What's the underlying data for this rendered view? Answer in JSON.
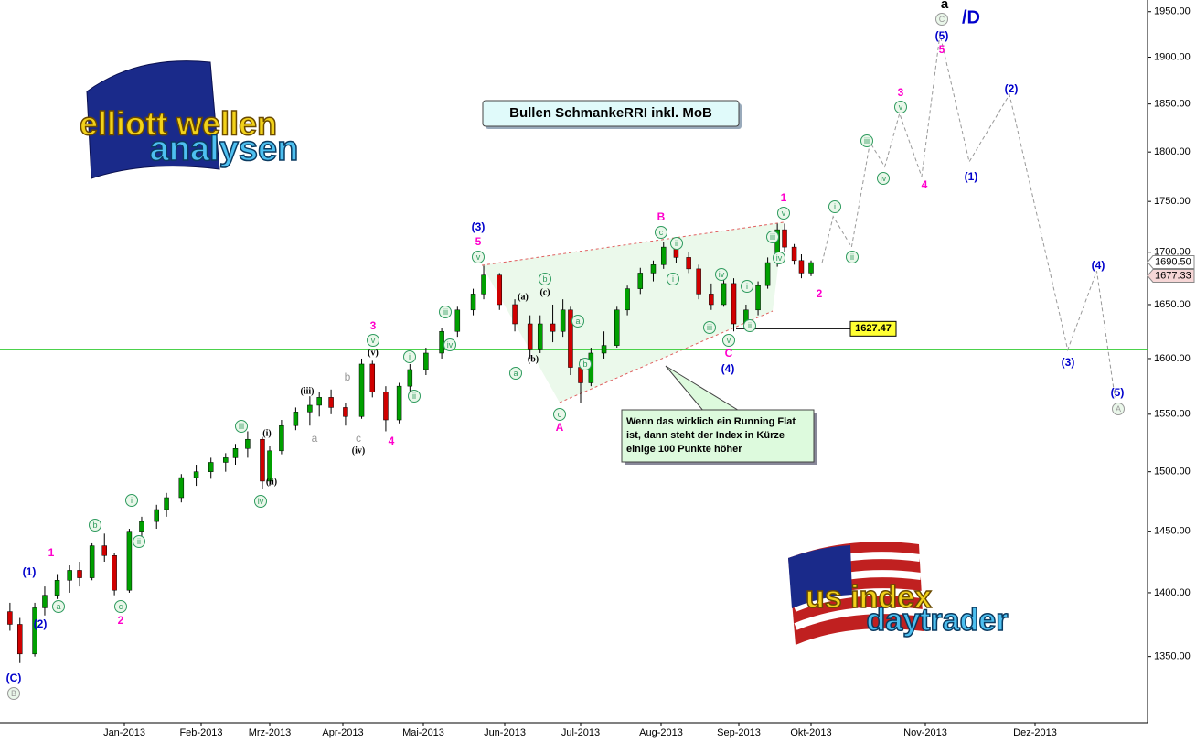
{
  "chart_data": {
    "type": "candlestick",
    "title": "Bullen SchmankeRRI inkl. MoB",
    "log": true,
    "ylim": [
      1300,
      1963
    ],
    "yticks": [
      {
        "value": 1350,
        "label": "1350.00"
      },
      {
        "value": 1400,
        "label": "1400.00"
      },
      {
        "value": 1450,
        "label": "1450.00"
      },
      {
        "value": 1500,
        "label": "1500.00"
      },
      {
        "value": 1550,
        "label": "1550.00"
      },
      {
        "value": 1600,
        "label": "1600.00"
      },
      {
        "value": 1650,
        "label": "1650.00"
      },
      {
        "value": 1700,
        "label": "1700.00"
      },
      {
        "value": 1750,
        "label": "1750.00"
      },
      {
        "value": 1800,
        "label": "1800.00"
      },
      {
        "value": 1850,
        "label": "1850.00"
      },
      {
        "value": 1900,
        "label": "1900.00"
      },
      {
        "value": 1950,
        "label": "1950.00"
      }
    ],
    "xlim": [
      "2012-11-12",
      "2014-01-01"
    ],
    "xticks": [
      {
        "value": "2013-01-01",
        "label": "Jan-2013"
      },
      {
        "value": "2013-02-01",
        "label": "Feb-2013"
      },
      {
        "value": "2013-03-01",
        "label": "Mrz-2013"
      },
      {
        "value": "2013-04-01",
        "label": "Apr-2013"
      },
      {
        "value": "2013-05-01",
        "label": "Mai-2013"
      },
      {
        "value": "2013-06-01",
        "label": "Jun-2013"
      },
      {
        "value": "2013-07-01",
        "label": "Jul-2013"
      },
      {
        "value": "2013-08-01",
        "label": "Aug-2013"
      },
      {
        "value": "2013-09-01",
        "label": "Sep-2013"
      },
      {
        "value": "2013-10-01",
        "label": "Okt-2013"
      },
      {
        "value": "2013-11-01",
        "label": "Nov-2013"
      },
      {
        "value": "2013-12-01",
        "label": "Dez-2013"
      }
    ],
    "up_color": "#00a000",
    "down_color": "#d00000",
    "x": [
      "2012-11-16",
      "2012-11-20",
      "2012-11-26",
      "2012-11-30",
      "2012-12-05",
      "2012-12-10",
      "2012-12-14",
      "2012-12-19",
      "2012-12-24",
      "2012-12-28",
      "2013-01-03",
      "2013-01-08",
      "2013-01-14",
      "2013-01-18",
      "2013-01-24",
      "2013-01-30",
      "2013-02-05",
      "2013-02-11",
      "2013-02-15",
      "2013-02-20",
      "2013-02-26",
      "2013-03-01",
      "2013-03-06",
      "2013-03-12",
      "2013-03-18",
      "2013-03-22",
      "2013-03-27",
      "2013-04-02",
      "2013-04-08",
      "2013-04-12",
      "2013-04-17",
      "2013-04-22",
      "2013-04-26",
      "2013-05-02",
      "2013-05-08",
      "2013-05-14",
      "2013-05-20",
      "2013-05-24",
      "2013-05-30",
      "2013-06-05",
      "2013-06-11",
      "2013-06-15",
      "2013-06-20",
      "2013-06-24",
      "2013-06-27",
      "2013-07-01",
      "2013-07-05",
      "2013-07-10",
      "2013-07-15",
      "2013-07-19",
      "2013-07-24",
      "2013-07-29",
      "2013-08-02",
      "2013-08-07",
      "2013-08-12",
      "2013-08-16",
      "2013-08-21",
      "2013-08-26",
      "2013-08-30",
      "2013-09-04",
      "2013-09-09",
      "2013-09-13",
      "2013-09-17",
      "2013-09-20",
      "2013-09-24",
      "2013-09-27",
      "2013-10-01"
    ],
    "open": [
      1385,
      1375,
      1352,
      1388,
      1398,
      1410,
      1418,
      1412,
      1438,
      1430,
      1402,
      1450,
      1458,
      1468,
      1478,
      1495,
      1500,
      1508,
      1512,
      1520,
      1528,
      1492,
      1518,
      1540,
      1552,
      1558,
      1565,
      1556,
      1548,
      1595,
      1570,
      1545,
      1575,
      1590,
      1605,
      1625,
      1645,
      1660,
      1678,
      1650,
      1632,
      1608,
      1632,
      1625,
      1645,
      1592,
      1578,
      1605,
      1612,
      1645,
      1665,
      1680,
      1688,
      1705,
      1695,
      1684,
      1660,
      1650,
      1670,
      1632,
      1645,
      1668,
      1690,
      1722,
      1705,
      1692,
      1680
    ],
    "high": [
      1392,
      1380,
      1392,
      1405,
      1415,
      1422,
      1425,
      1440,
      1448,
      1432,
      1452,
      1462,
      1472,
      1482,
      1498,
      1506,
      1512,
      1516,
      1524,
      1535,
      1530,
      1522,
      1545,
      1556,
      1566,
      1570,
      1572,
      1560,
      1600,
      1598,
      1575,
      1578,
      1595,
      1610,
      1628,
      1648,
      1665,
      1687,
      1680,
      1655,
      1640,
      1640,
      1650,
      1655,
      1648,
      1600,
      1610,
      1625,
      1648,
      1668,
      1685,
      1692,
      1710,
      1712,
      1700,
      1688,
      1670,
      1680,
      1675,
      1650,
      1672,
      1695,
      1728,
      1728,
      1708,
      1698,
      1692
    ],
    "low": [
      1370,
      1345,
      1350,
      1382,
      1395,
      1400,
      1405,
      1410,
      1425,
      1398,
      1400,
      1445,
      1452,
      1462,
      1474,
      1488,
      1494,
      1500,
      1506,
      1512,
      1485,
      1488,
      1515,
      1536,
      1540,
      1548,
      1550,
      1540,
      1546,
      1565,
      1535,
      1542,
      1570,
      1585,
      1600,
      1620,
      1640,
      1655,
      1645,
      1625,
      1600,
      1605,
      1615,
      1620,
      1585,
      1560,
      1575,
      1600,
      1610,
      1640,
      1660,
      1672,
      1684,
      1690,
      1680,
      1655,
      1645,
      1648,
      1625,
      1628,
      1640,
      1665,
      1686,
      1700,
      1688,
      1675,
      1677
    ],
    "close": [
      1375,
      1352,
      1388,
      1398,
      1410,
      1418,
      1412,
      1438,
      1430,
      1402,
      1450,
      1458,
      1468,
      1478,
      1495,
      1500,
      1508,
      1512,
      1520,
      1528,
      1492,
      1518,
      1540,
      1552,
      1558,
      1565,
      1556,
      1548,
      1595,
      1570,
      1545,
      1575,
      1590,
      1605,
      1625,
      1645,
      1660,
      1678,
      1650,
      1632,
      1608,
      1632,
      1625,
      1645,
      1592,
      1578,
      1605,
      1612,
      1645,
      1665,
      1680,
      1688,
      1705,
      1695,
      1684,
      1660,
      1650,
      1670,
      1632,
      1645,
      1668,
      1690,
      1722,
      1705,
      1692,
      1680,
      1690
    ],
    "projection": {
      "x": [
        "2013-10-04",
        "2013-10-07",
        "2013-10-12",
        "2013-10-17",
        "2013-10-21",
        "2013-10-25",
        "2013-10-31",
        "2013-11-05",
        "2013-11-13",
        "2013-11-24",
        "2013-12-10",
        "2013-12-18",
        "2013-12-23"
      ],
      "values": [
        1690,
        1735,
        1705,
        1810,
        1785,
        1840,
        1775,
        1925,
        1790,
        1860,
        1608,
        1682,
        1565
      ]
    },
    "hline": 1608,
    "price_labels": [
      {
        "value": 1690.5,
        "label": "1690.50"
      },
      {
        "value": 1677.33,
        "label": "1677.33"
      }
    ],
    "marker_label": {
      "value": 1627.47,
      "label": "1627.47"
    },
    "note": [
      "Wenn das wirklich ein Running Flat",
      "ist, dann steht der Index in Kürze",
      "einige 100 Punkte höher"
    ],
    "degree_label": "a",
    "timeframe": "/D",
    "logos": [
      "elliott wellen",
      "analysen",
      "us index",
      "daytrader"
    ],
    "wave_labels": [
      {
        "text": "(C)",
        "color": "#0000cc"
      },
      {
        "text": "B",
        "color": "#999999",
        "circled": true
      },
      {
        "text": "(1)",
        "color": "#0000cc"
      },
      {
        "text": "(2)",
        "color": "#0000cc"
      },
      {
        "text": "1",
        "color": "#ff00cc"
      },
      {
        "text": "a",
        "color": "#2e9b5e",
        "circled": true
      },
      {
        "text": "b",
        "color": "#2e9b5e",
        "circled": true
      },
      {
        "text": "c",
        "color": "#2e9b5e",
        "circled": true
      },
      {
        "text": "2",
        "color": "#ff00cc"
      },
      {
        "text": "i",
        "color": "#2e9b5e",
        "circled": true
      },
      {
        "text": "ii",
        "color": "#2e9b5e",
        "circled": true
      },
      {
        "text": "iii",
        "color": "#2e9b5e",
        "circled": true
      },
      {
        "text": "(i)",
        "color": "#000000"
      },
      {
        "text": "(ii)",
        "color": "#000000"
      },
      {
        "text": "iv",
        "color": "#2e9b5e",
        "circled": true
      },
      {
        "text": "(iii)",
        "color": "#000000"
      },
      {
        "text": "a",
        "color": "#999999"
      },
      {
        "text": "b",
        "color": "#999999"
      },
      {
        "text": "c",
        "color": "#999999"
      },
      {
        "text": "(iv)",
        "color": "#000000"
      },
      {
        "text": "(v)",
        "color": "#000000"
      },
      {
        "text": "v",
        "color": "#2e9b5e",
        "circled": true
      },
      {
        "text": "3",
        "color": "#ff00cc"
      },
      {
        "text": "4",
        "color": "#ff00cc"
      },
      {
        "text": "i",
        "color": "#2e9b5e",
        "circled": true
      },
      {
        "text": "ii",
        "color": "#2e9b5e",
        "circled": true
      },
      {
        "text": "iii",
        "color": "#2e9b5e",
        "circled": true
      },
      {
        "text": "iv",
        "color": "#2e9b5e",
        "circled": true
      },
      {
        "text": "(3)",
        "color": "#0000cc"
      },
      {
        "text": "5",
        "color": "#ff00cc"
      },
      {
        "text": "v",
        "color": "#2e9b5e",
        "circled": true
      },
      {
        "text": "(a)",
        "color": "#000000"
      },
      {
        "text": "(b)",
        "color": "#000000"
      },
      {
        "text": "(c)",
        "color": "#000000"
      },
      {
        "text": "b",
        "color": "#2e9b5e",
        "circled": true
      },
      {
        "text": "a",
        "color": "#2e9b5e",
        "circled": true
      },
      {
        "text": "a",
        "color": "#2e9b5e",
        "circled": true
      },
      {
        "text": "b",
        "color": "#2e9b5e",
        "circled": true
      },
      {
        "text": "c",
        "color": "#2e9b5e",
        "circled": true
      },
      {
        "text": "A",
        "color": "#ff00cc"
      },
      {
        "text": "B",
        "color": "#ff00cc"
      },
      {
        "text": "c",
        "color": "#2e9b5e",
        "circled": true
      },
      {
        "text": "ii",
        "color": "#2e9b5e",
        "circled": true
      },
      {
        "text": "i",
        "color": "#2e9b5e",
        "circled": true
      },
      {
        "text": "iv",
        "color": "#2e9b5e",
        "circled": true
      },
      {
        "text": "iii",
        "color": "#2e9b5e",
        "circled": true
      },
      {
        "text": "v",
        "color": "#2e9b5e",
        "circled": true
      },
      {
        "text": "C",
        "color": "#ff00cc"
      },
      {
        "text": "(4)",
        "color": "#0000cc"
      },
      {
        "text": "i",
        "color": "#2e9b5e",
        "circled": true
      },
      {
        "text": "ii",
        "color": "#2e9b5e",
        "circled": true
      },
      {
        "text": "iii",
        "color": "#2e9b5e",
        "circled": true
      },
      {
        "text": "iv",
        "color": "#2e9b5e",
        "circled": true
      },
      {
        "text": "v",
        "color": "#2e9b5e",
        "circled": true
      },
      {
        "text": "1",
        "color": "#ff00cc"
      },
      {
        "text": "2",
        "color": "#ff00cc"
      },
      {
        "text": "i",
        "color": "#2e9b5e",
        "circled": true
      },
      {
        "text": "ii",
        "color": "#2e9b5e",
        "circled": true
      },
      {
        "text": "iii",
        "color": "#2e9b5e",
        "circled": true
      },
      {
        "text": "iv",
        "color": "#2e9b5e",
        "circled": true
      },
      {
        "text": "v",
        "color": "#2e9b5e",
        "circled": true
      },
      {
        "text": "3",
        "color": "#ff00cc"
      },
      {
        "text": "4",
        "color": "#ff00cc"
      },
      {
        "text": "5",
        "color": "#ff00cc"
      },
      {
        "text": "(5)",
        "color": "#0000cc"
      },
      {
        "text": "C",
        "color": "#999999",
        "circled": true
      },
      {
        "text": "(1)",
        "color": "#0000cc"
      },
      {
        "text": "(2)",
        "color": "#0000cc"
      },
      {
        "text": "(3)",
        "color": "#0000cc"
      },
      {
        "text": "(4)",
        "color": "#0000cc"
      },
      {
        "text": "(5)",
        "color": "#0000cc"
      },
      {
        "text": "A",
        "color": "#999999",
        "circled": true
      }
    ]
  }
}
